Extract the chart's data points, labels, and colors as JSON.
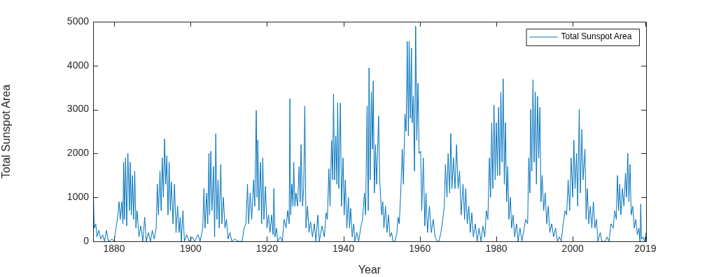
{
  "chart_data": {
    "type": "line",
    "xlabel": "Year",
    "ylabel": "Total Sunspot Area",
    "xlim": [
      1874.5,
      2019.2
    ],
    "ylim": [
      0,
      5000
    ],
    "xticks": [
      1880,
      1900,
      1920,
      1940,
      1960,
      1980,
      2000,
      2019
    ],
    "yticks": [
      0,
      1000,
      2000,
      3000,
      4000,
      5000
    ],
    "grid": false,
    "legend": "top right",
    "marker": "none",
    "line_style": "solid",
    "series": [
      {
        "name": "Total Sunspot Area",
        "color": "#0072bd",
        "x": [
          1874.5,
          1874.6,
          1874.8,
          1875.2,
          1875.5,
          1876,
          1876.5,
          1877,
          1877.5,
          1878,
          1878.5,
          1879.5,
          1880,
          1880.5,
          1881,
          1881.3,
          1881.6,
          1882,
          1882.3,
          1882.5,
          1882.7,
          1883,
          1883.3,
          1883.6,
          1884,
          1884.2,
          1884.5,
          1884.8,
          1885.1,
          1885.4,
          1885.7,
          1886,
          1886.5,
          1887,
          1887.5,
          1888,
          1888.4,
          1889,
          1889.5,
          1890,
          1890.5,
          1891,
          1891.3,
          1891.6,
          1892,
          1892.3,
          1892.6,
          1892.9,
          1893.2,
          1893.5,
          1893.8,
          1894.1,
          1894.4,
          1894.7,
          1895,
          1895.4,
          1895.8,
          1896.2,
          1896.6,
          1897,
          1897.3,
          1897.6,
          1898,
          1898.4,
          1899,
          1899.6,
          1900.5,
          1901,
          1902,
          1902.5,
          1903.2,
          1903.5,
          1903.8,
          1904.2,
          1904.5,
          1904.8,
          1905,
          1905.3,
          1905.6,
          1906,
          1906.3,
          1906.6,
          1906.9,
          1907.2,
          1907.5,
          1907.9,
          1908.2,
          1908.6,
          1909,
          1909.4,
          1909.8,
          1910.3,
          1910.8,
          1911.5,
          1912.5,
          1913.5,
          1914,
          1914.5,
          1914.9,
          1915.2,
          1915.6,
          1916,
          1916.5,
          1916.8,
          1917.2,
          1917.4,
          1917.6,
          1917.9,
          1918.3,
          1918.6,
          1918.9,
          1919.2,
          1919.6,
          1920,
          1920.4,
          1920.8,
          1921.2,
          1921.6,
          1921.8,
          1922.1,
          1922.5,
          1922.8,
          1923.5,
          1924,
          1924.5,
          1925,
          1925.4,
          1925.8,
          1926,
          1926.2,
          1926.5,
          1926.8,
          1927,
          1927.3,
          1927.6,
          1928,
          1928.4,
          1928.7,
          1928.9,
          1929.3,
          1929.6,
          1929.9,
          1930.2,
          1930.6,
          1931,
          1931.4,
          1931.9,
          1932.4,
          1932.8,
          1933.3,
          1933.7,
          1934.4,
          1935,
          1935.5,
          1935.8,
          1936.2,
          1936.5,
          1936.9,
          1937.2,
          1937.4,
          1937.7,
          1938,
          1938.3,
          1938.5,
          1938.8,
          1939.2,
          1939.5,
          1939.9,
          1940.2,
          1940.5,
          1940.9,
          1941.3,
          1941.6,
          1941.9,
          1942.3,
          1942.7,
          1943,
          1943.5,
          1944,
          1944.5,
          1945,
          1945.5,
          1945.8,
          1946.2,
          1946.5,
          1946.7,
          1947,
          1947.3,
          1947.6,
          1947.8,
          1948.1,
          1948.4,
          1948.7,
          1949.2,
          1949.5,
          1950,
          1950.3,
          1950.6,
          1951,
          1951.4,
          1951.8,
          1952.2,
          1952.6,
          1953,
          1953.5,
          1954,
          1954.3,
          1954.6,
          1955,
          1955.4,
          1955.7,
          1956.1,
          1956.4,
          1956.7,
          1957,
          1957.2,
          1957.5,
          1957.8,
          1958,
          1958.3,
          1958.6,
          1958.9,
          1959.2,
          1959.5,
          1959.8,
          1960.2,
          1960.5,
          1960.9,
          1961.3,
          1961.6,
          1962,
          1962.5,
          1963,
          1963.5,
          1964,
          1964.5,
          1965,
          1965.5,
          1966,
          1966.4,
          1966.7,
          1967.1,
          1967.4,
          1967.8,
          1968.1,
          1968.4,
          1968.8,
          1969.2,
          1969.6,
          1970,
          1970.4,
          1970.8,
          1971.3,
          1971.7,
          1972,
          1972.4,
          1972.8,
          1973.2,
          1973.6,
          1974,
          1974.5,
          1975,
          1975.5,
          1976,
          1976.5,
          1977,
          1977.4,
          1977.8,
          1978.2,
          1978.5,
          1978.8,
          1979.1,
          1979.4,
          1979.7,
          1980,
          1980.3,
          1980.6,
          1980.9,
          1981.2,
          1981.5,
          1981.8,
          1982.1,
          1982.4,
          1982.7,
          1983,
          1983.3,
          1983.7,
          1984,
          1984.4,
          1984.8,
          1985.3,
          1985.7,
          1986.2,
          1986.7,
          1987.3,
          1987.7,
          1988.2,
          1988.5,
          1988.8,
          1989,
          1989.3,
          1989.6,
          1989.9,
          1990.2,
          1990.5,
          1990.8,
          1991.1,
          1991.4,
          1991.7,
          1992,
          1992.4,
          1992.8,
          1993.2,
          1993.6,
          1994,
          1994.5,
          1995,
          1995.5,
          1996,
          1996.5,
          1997,
          1997.5,
          1998,
          1998.4,
          1998.8,
          1999.2,
          1999.6,
          2000,
          2000.3,
          2000.6,
          2001,
          2001.3,
          2001.7,
          2002,
          2002.4,
          2002.7,
          2003.2,
          2003.5,
          2003.8,
          2004.2,
          2004.6,
          2005,
          2005.4,
          2005.8,
          2006.2,
          2006.6,
          2007.2,
          2007.6,
          2008.5,
          2009,
          2009.5,
          2010,
          2010.6,
          2011,
          2011.4,
          2011.7,
          2012,
          2012.3,
          2012.6,
          2013,
          2013.4,
          2013.8,
          2014.1,
          2014.4,
          2014.7,
          2015,
          2015.3,
          2015.7,
          2016.1,
          2016.5,
          2016.9,
          2017.3,
          2017.6,
          2017.8,
          2018,
          2018.4,
          2018.8,
          2019.2
        ],
        "values": [
          300,
          1000,
          300,
          400,
          100,
          250,
          50,
          150,
          0,
          250,
          0,
          50,
          0,
          300,
          600,
          900,
          500,
          900,
          400,
          1800,
          500,
          1900,
          350,
          2000,
          700,
          1800,
          600,
          1500,
          500,
          1600,
          300,
          700,
          100,
          350,
          0,
          550,
          0,
          200,
          0,
          250,
          50,
          300,
          1300,
          600,
          1600,
          700,
          1900,
          1000,
          2330,
          1300,
          1950,
          600,
          1800,
          700,
          1350,
          400,
          1300,
          200,
          800,
          200,
          550,
          0,
          700,
          0,
          150,
          0,
          100,
          0,
          150,
          0,
          300,
          1200,
          300,
          1100,
          400,
          2000,
          600,
          2050,
          700,
          1700,
          100,
          2450,
          500,
          1400,
          300,
          1750,
          400,
          1000,
          300,
          500,
          50,
          200,
          0,
          50,
          0,
          0,
          300,
          400,
          1300,
          400,
          1100,
          500,
          1400,
          800,
          2980,
          1000,
          2300,
          700,
          1800,
          400,
          1900,
          500,
          1250,
          300,
          600,
          200,
          600,
          150,
          1200,
          100,
          300,
          0,
          100,
          0,
          500,
          300,
          700,
          400,
          3250,
          600,
          1300,
          800,
          1800,
          800,
          1100,
          800,
          1700,
          900,
          2200,
          800,
          1200,
          3080,
          300,
          800,
          200,
          450,
          100,
          400,
          0,
          600,
          0,
          350,
          100,
          650,
          500,
          1650,
          800,
          2300,
          1400,
          3350,
          1400,
          2400,
          1300,
          3150,
          1200,
          3150,
          800,
          1900,
          600,
          1400,
          300,
          1000,
          300,
          750,
          100,
          400,
          0,
          200,
          0,
          300,
          500,
          1100,
          600,
          3080,
          700,
          3950,
          1400,
          3400,
          2100,
          3650,
          1100,
          2200,
          1300,
          2850,
          1400,
          600,
          900,
          300,
          800,
          200,
          600,
          100,
          200,
          0,
          0,
          200,
          550,
          400,
          1100,
          2100,
          1300,
          2900,
          2500,
          4550,
          2400,
          4550,
          2800,
          4400,
          2700,
          3300,
          1600,
          4900,
          2300,
          3600,
          2000,
          2050,
          700,
          1900,
          350,
          1100,
          200,
          800,
          200,
          500,
          100,
          0,
          0,
          200,
          500,
          800,
          1750,
          1000,
          2000,
          1100,
          2450,
          1200,
          1900,
          1200,
          2200,
          1200,
          1600,
          600,
          1300,
          500,
          1200,
          400,
          800,
          200,
          650,
          100,
          400,
          0,
          300,
          0,
          350,
          100,
          700,
          500,
          1900,
          1000,
          2700,
          1200,
          3100,
          1400,
          2700,
          1500,
          3050,
          1500,
          3400,
          1800,
          3700,
          1300,
          2700,
          900,
          1700,
          500,
          1000,
          300,
          600,
          100,
          400,
          0,
          300,
          0,
          300,
          500,
          400,
          1900,
          1100,
          3000,
          1600,
          3680,
          1800,
          3400,
          1300,
          3300,
          1900,
          3050,
          900,
          1500,
          700,
          1100,
          400,
          800,
          200,
          400,
          100,
          300,
          0,
          100,
          0,
          400,
          700,
          600,
          1400,
          700,
          1900,
          1000,
          2300,
          1200,
          2000,
          800,
          3000,
          1100,
          2550,
          1400,
          2100,
          500,
          1200,
          400,
          800,
          300,
          900,
          300,
          500,
          0,
          200,
          0,
          0,
          100,
          0,
          400,
          300,
          700,
          500,
          1500,
          700,
          1300,
          600,
          1200,
          800,
          1550,
          1000,
          2000,
          900,
          1750,
          600,
          800,
          300,
          500,
          150,
          300,
          0,
          850,
          50,
          100,
          0,
          200
        ]
      }
    ]
  }
}
